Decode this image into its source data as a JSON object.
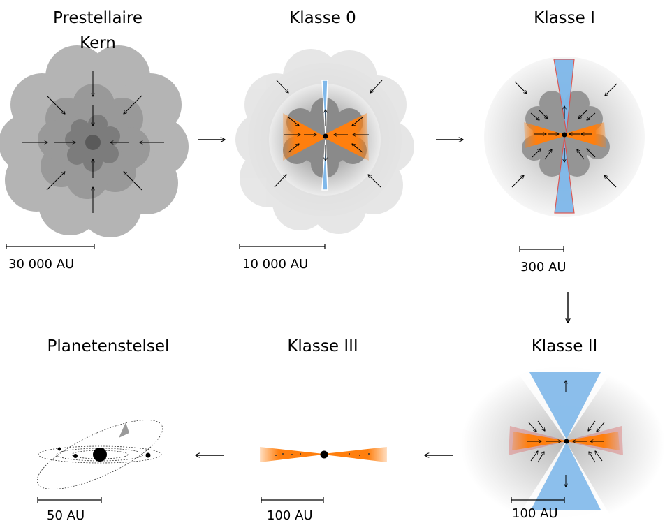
{
  "stages": [
    {
      "id": "prestellar",
      "title_lines": [
        "Prestellaire",
        "Kern"
      ],
      "scale": "30 000 AU"
    },
    {
      "id": "class0",
      "title_lines": [
        "Klasse 0"
      ],
      "scale": "10 000 AU"
    },
    {
      "id": "class1",
      "title_lines": [
        "Klasse I"
      ],
      "scale": "300 AU"
    },
    {
      "id": "class2",
      "title_lines": [
        "Klasse II"
      ],
      "scale": "100 AU"
    },
    {
      "id": "class3",
      "title_lines": [
        "Klasse III"
      ],
      "scale": "100 AU"
    },
    {
      "id": "planetary",
      "title_lines": [
        "Planetenstelsel"
      ],
      "scale": "50 AU"
    }
  ],
  "colors": {
    "cloud_outer": "#b4b4b4",
    "cloud_mid": "#999999",
    "cloud_inner": "#7c7c7c",
    "cloud_core": "#5a5a5a",
    "disk": "#ff7f0e",
    "jet": "#7fb8ea",
    "jet_edge": "#d9534f"
  },
  "icons": [
    "arrow-right-icon",
    "arrow-down-icon",
    "arrow-left-icon",
    "star-icon",
    "planet-icon"
  ]
}
